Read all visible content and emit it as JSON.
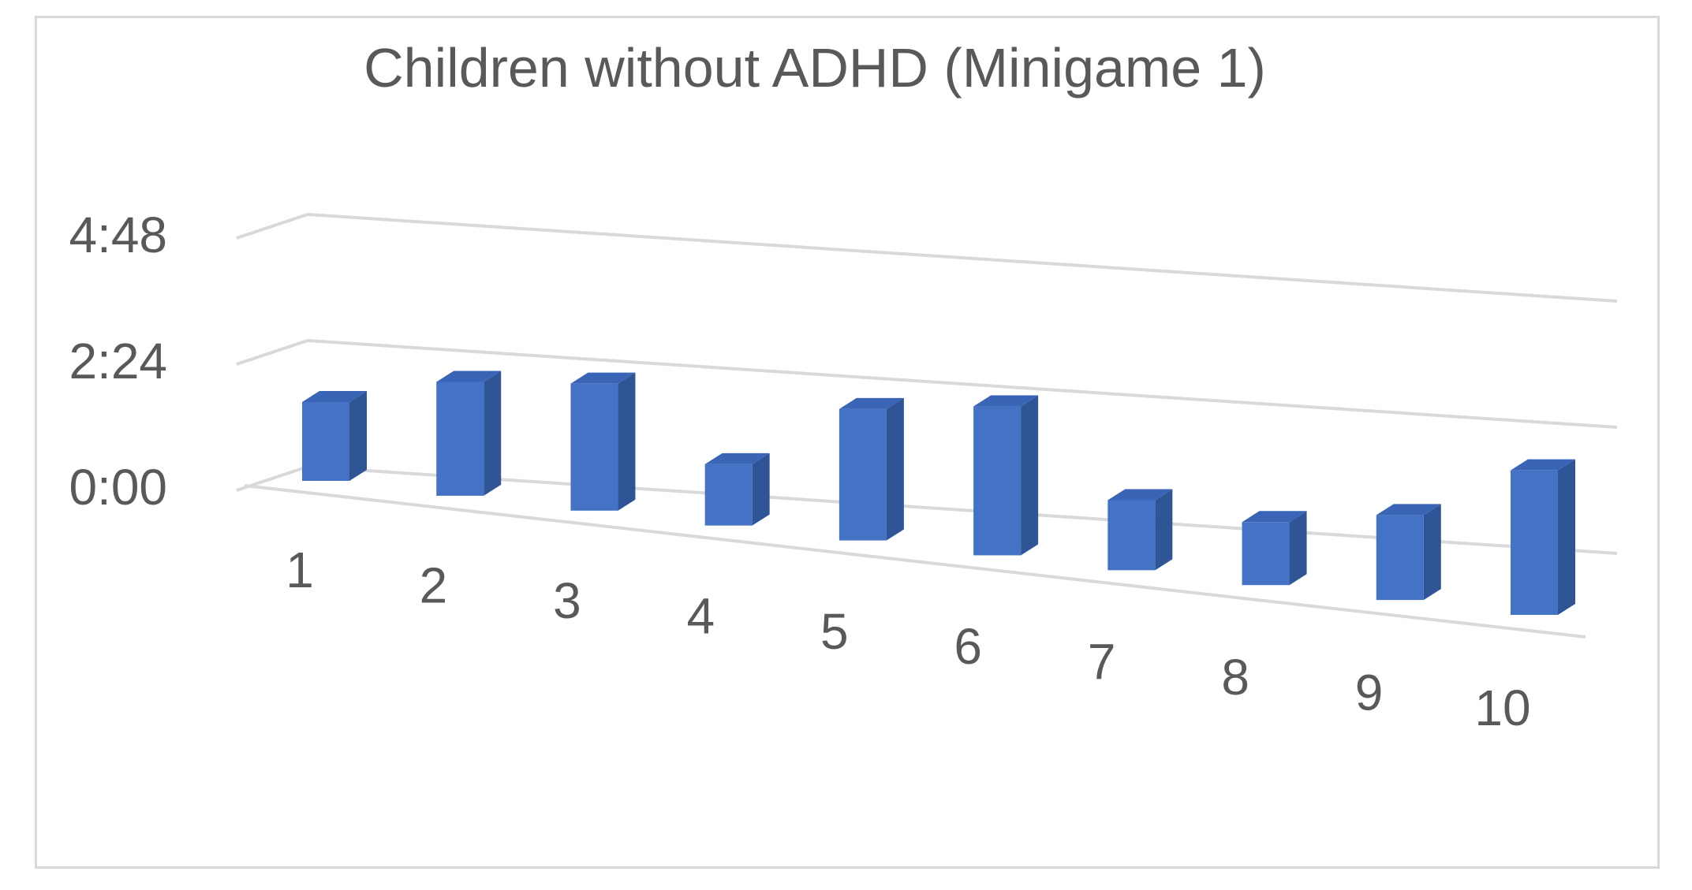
{
  "chart_data": {
    "type": "bar",
    "title": "Children without  ADHD (Minigame 1)",
    "categories": [
      "1",
      "2",
      "3",
      "4",
      "5",
      "6",
      "7",
      "8",
      "9",
      "10"
    ],
    "values": [
      90,
      130,
      145,
      70,
      150,
      170,
      80,
      72,
      97,
      165
    ],
    "y_tick_labels": [
      "0:00",
      "2:24",
      "4:48"
    ],
    "y_ticks_seconds": [
      0,
      144,
      288
    ],
    "ylim": [
      0,
      288
    ],
    "value_unit": "seconds (axis shown as m:ss)",
    "grid": true,
    "legend": "none",
    "style": "3d-column",
    "colors": {
      "bar_front": "#4472c4",
      "bar_side": "#2f5597",
      "bar_top": "#3a64b5",
      "grid": "#d9d9d9",
      "text": "#595959"
    }
  }
}
